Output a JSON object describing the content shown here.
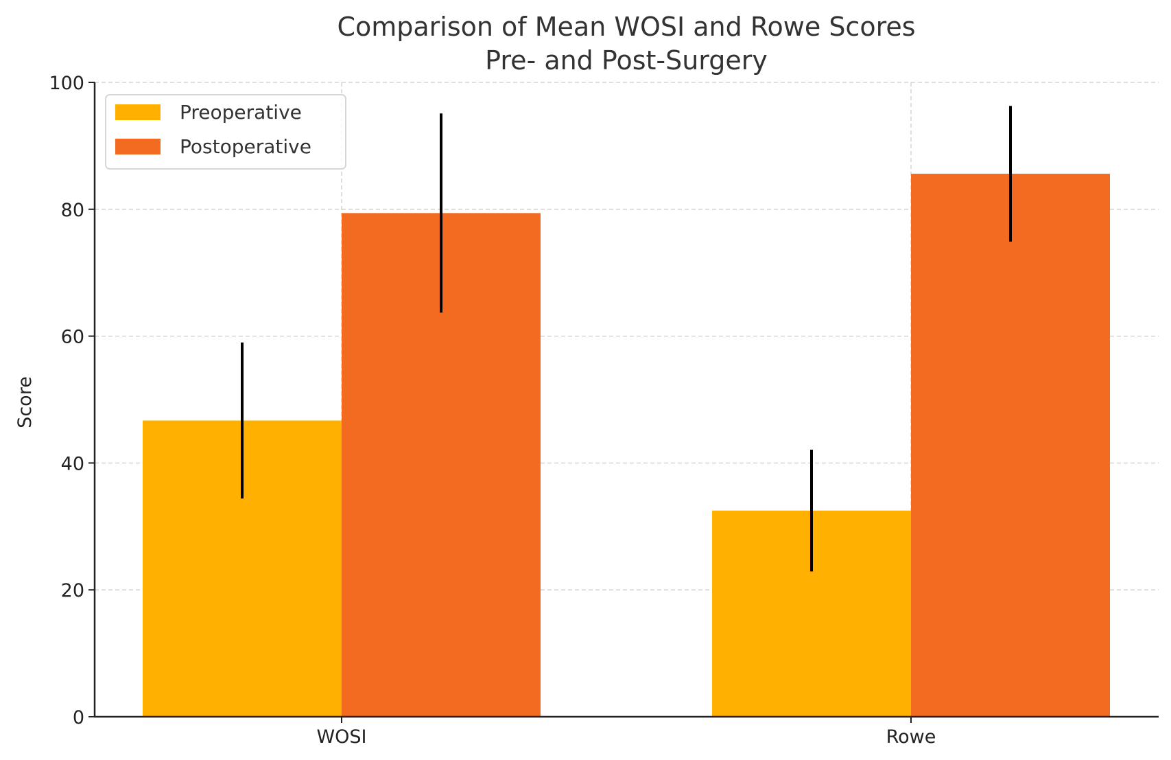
{
  "chart_data": {
    "type": "bar",
    "title": "Comparison of Mean WOSI and Rowe Scores\nPre- and Post-Surgery",
    "title_lines": [
      "Comparison of Mean WOSI and Rowe Scores",
      "Pre- and Post-Surgery"
    ],
    "xlabel": "",
    "ylabel": "Score",
    "ylim": [
      0,
      100
    ],
    "yticks": [
      0,
      20,
      40,
      60,
      80,
      100
    ],
    "ytick_labels": [
      "0",
      "20",
      "40",
      "60",
      "80",
      "100"
    ],
    "categories": [
      "WOSI",
      "Rowe"
    ],
    "grid": true,
    "legend_position": "top-left",
    "series": [
      {
        "name": "Preoperative",
        "color": "#FFB000",
        "values": [
          46.7,
          32.5
        ],
        "errors": [
          12.3,
          9.6
        ]
      },
      {
        "name": "Postoperative",
        "color": "#F26B21",
        "values": [
          79.4,
          85.6
        ],
        "errors": [
          15.7,
          10.7
        ]
      }
    ]
  }
}
